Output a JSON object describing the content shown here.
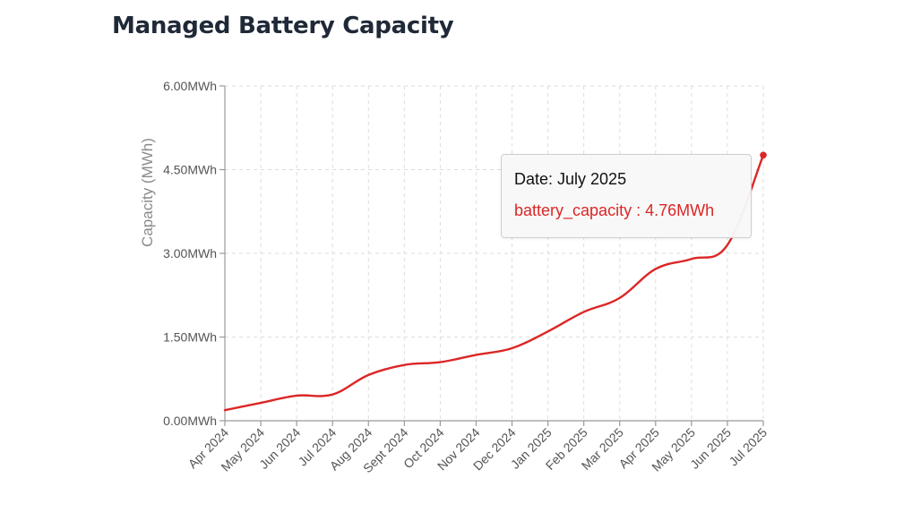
{
  "title": "Managed Battery Capacity",
  "colors": {
    "line": "#dc2626",
    "grid": "#dddddd",
    "axis": "#999999",
    "title": "#1f2937"
  },
  "chart_data": {
    "type": "line",
    "title": "Managed Battery Capacity",
    "xlabel": "",
    "ylabel": "Capacity (MWh)",
    "ylim": [
      0,
      6
    ],
    "y_ticks": [
      0,
      1.5,
      3,
      4.5,
      6
    ],
    "y_tick_labels": [
      "0.00MWh",
      "1.50MWh",
      "3.00MWh",
      "4.50MWh",
      "6.00MWh"
    ],
    "categories": [
      "Apr 2024",
      "May 2024",
      "Jun 2024",
      "Jul 2024",
      "Aug 2024",
      "Sept 2024",
      "Oct 2024",
      "Nov 2024",
      "Dec 2024",
      "Jan 2025",
      "Feb 2025",
      "Mar 2025",
      "Apr 2025",
      "May 2025",
      "Jun 2025",
      "Jul 2025"
    ],
    "grid": true,
    "series": [
      {
        "key": "battery_capacity",
        "color": "#dc2626",
        "values": [
          0.19,
          0.32,
          0.45,
          0.47,
          0.82,
          1.0,
          1.05,
          1.18,
          1.3,
          1.6,
          1.95,
          2.2,
          2.72,
          2.9,
          3.15,
          4.76
        ]
      }
    ],
    "tooltip": {
      "date_text": "Date: July 2025",
      "value_text": "battery_capacity : 4.76MWh",
      "index": 15
    }
  }
}
